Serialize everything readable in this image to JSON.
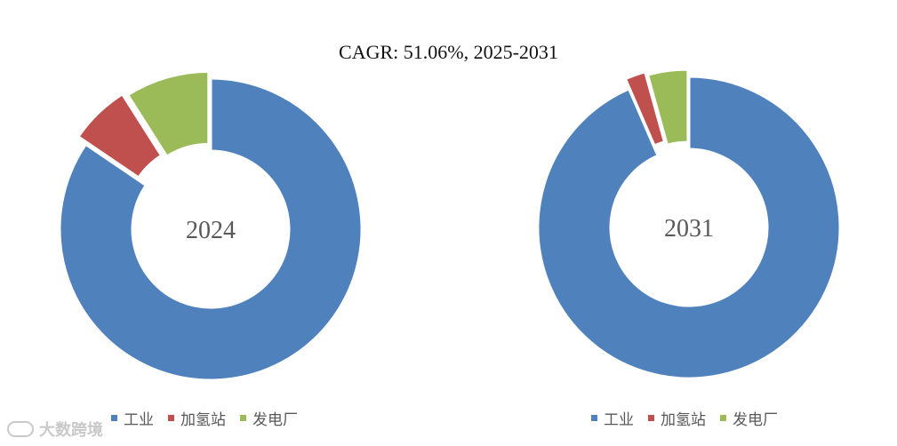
{
  "title": "CAGR:   51.06%, 2025-2031",
  "legend_labels": [
    "工业",
    "加氢站",
    "发电厂"
  ],
  "colors": [
    "#4F81BD",
    "#C0504D",
    "#9BBB59"
  ],
  "watermark": "大数跨境",
  "chart_data": [
    {
      "type": "pie",
      "center_label": "2024",
      "categories": [
        "工业",
        "加氢站",
        "发电厂"
      ],
      "values": [
        84.5,
        6.5,
        9.0
      ]
    },
    {
      "type": "pie",
      "center_label": "2031",
      "categories": [
        "工业",
        "加氢站",
        "发电厂"
      ],
      "values": [
        93.5,
        2.2,
        4.3
      ]
    }
  ]
}
